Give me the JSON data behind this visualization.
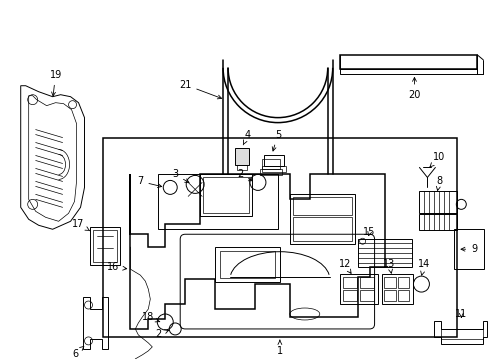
{
  "background_color": "#ffffff",
  "line_color": "#000000",
  "fig_width": 4.89,
  "fig_height": 3.6,
  "dpi": 100,
  "label_fontsize": 7.0,
  "lw_main": 1.1,
  "lw_med": 0.7,
  "lw_thin": 0.5
}
